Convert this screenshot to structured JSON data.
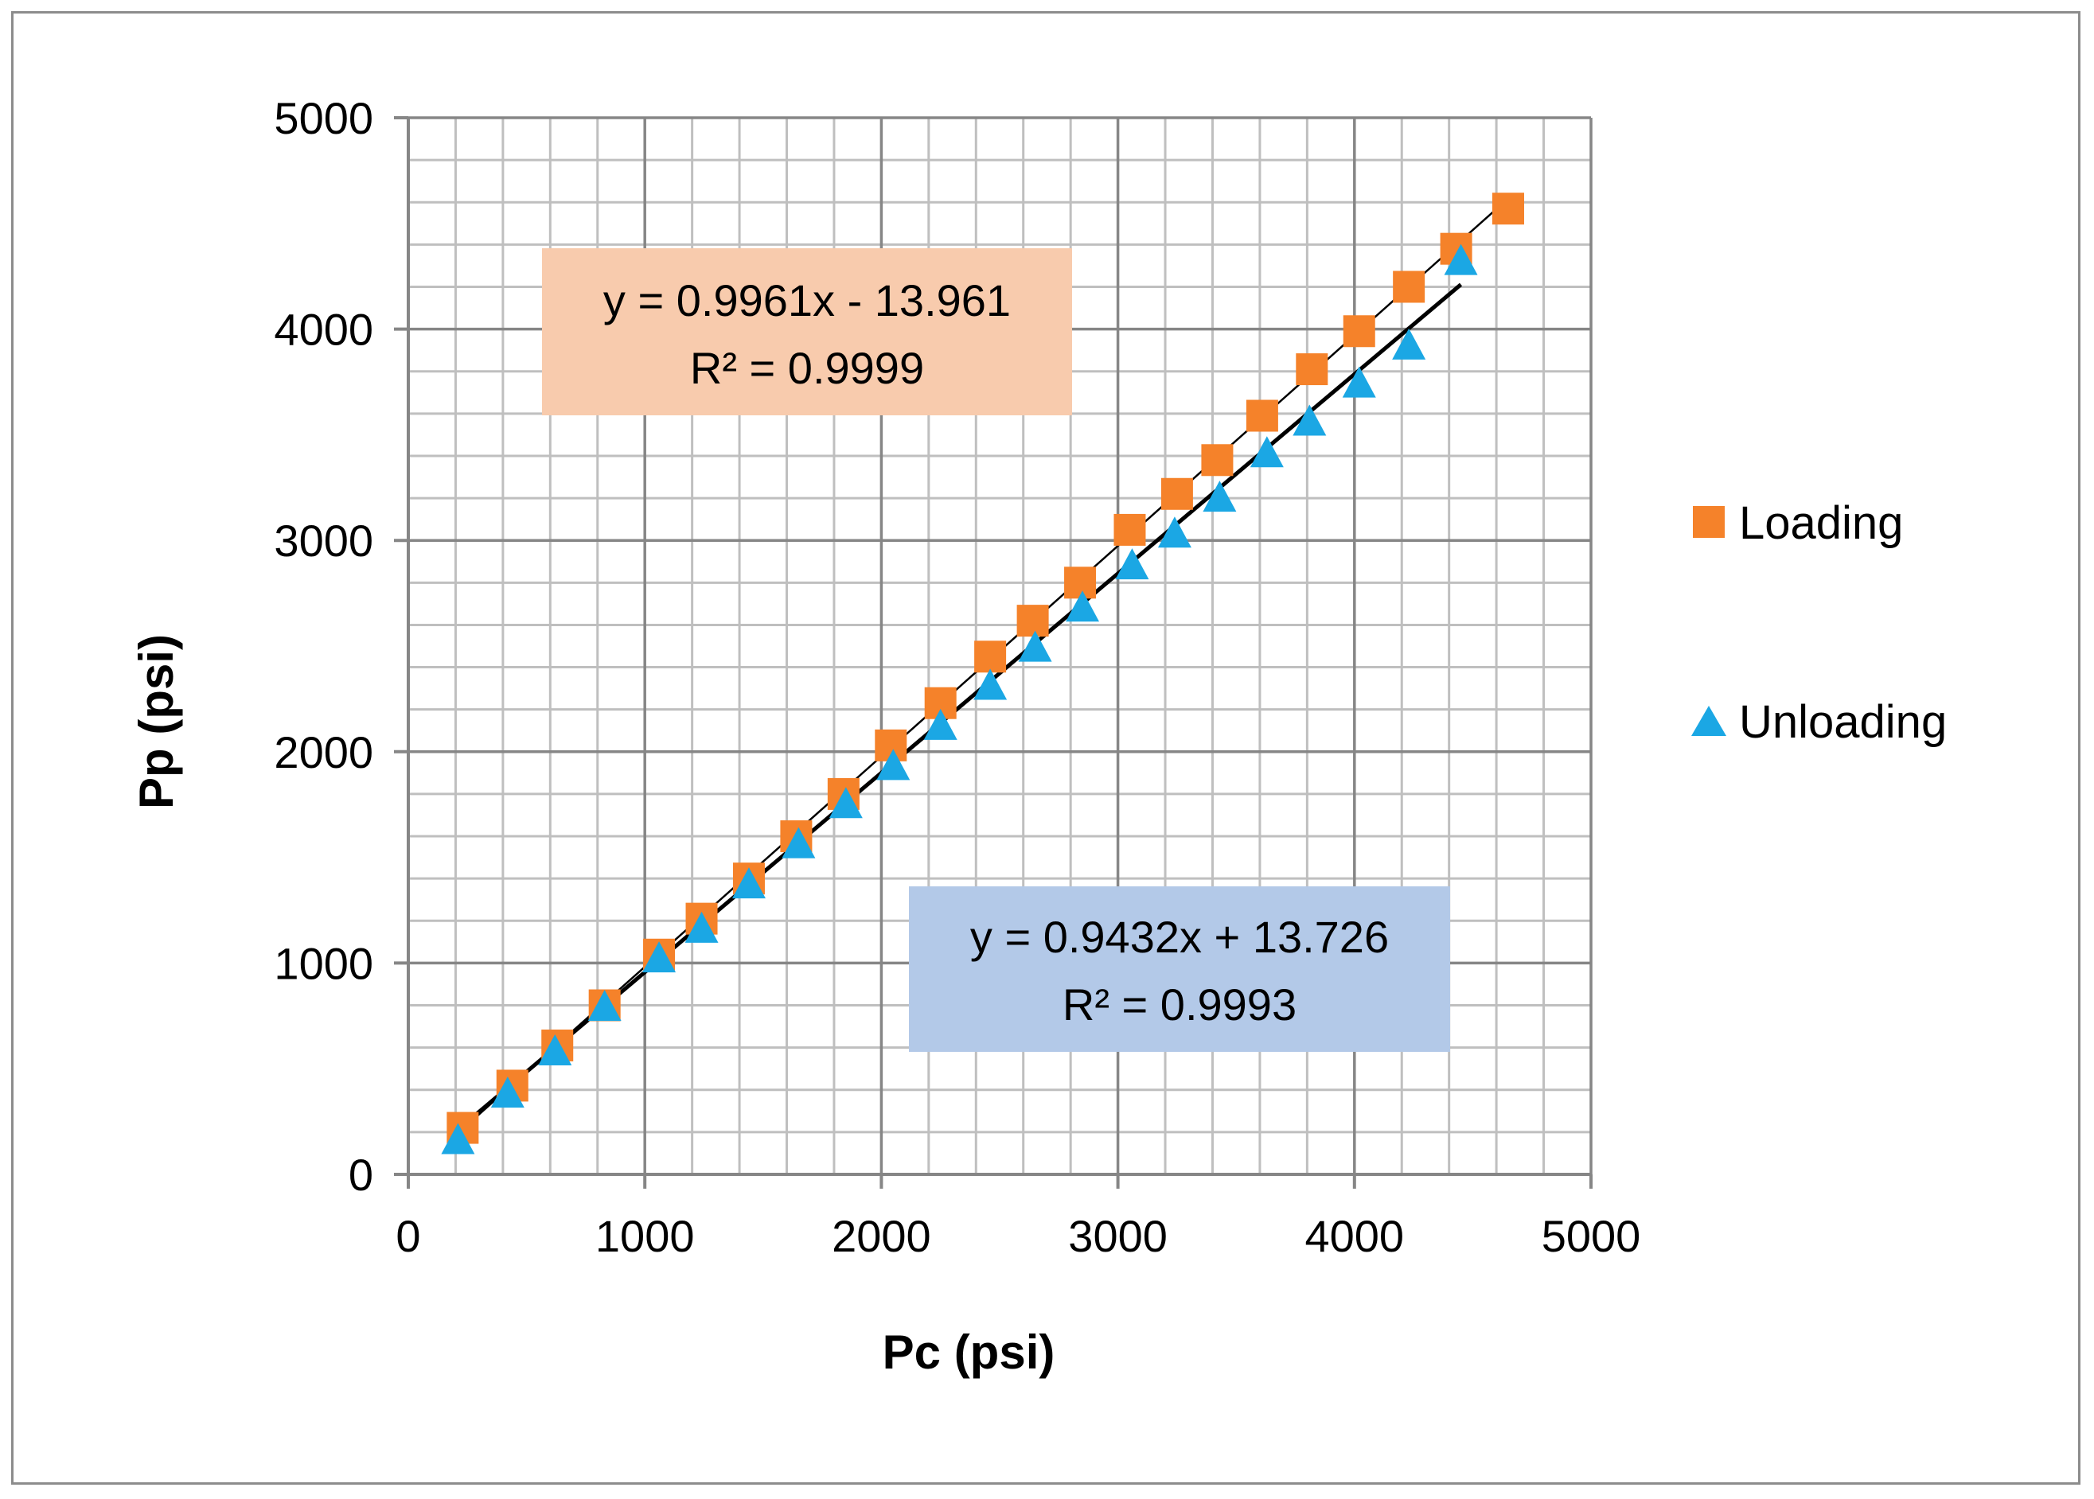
{
  "chart_data": {
    "type": "scatter",
    "title": "",
    "xlabel": "Pc (psi)",
    "ylabel": "Pp (psi)",
    "xlim": [
      0,
      5000
    ],
    "ylim": [
      0,
      5000
    ],
    "xticks": [
      0,
      1000,
      2000,
      3000,
      4000,
      5000
    ],
    "yticks": [
      0,
      1000,
      2000,
      3000,
      4000,
      5000
    ],
    "grid": true,
    "legend_position": "right",
    "series": [
      {
        "name": "Loading",
        "marker": "square",
        "color": "#F5822A",
        "x": [
          230,
          440,
          630,
          830,
          1060,
          1240,
          1440,
          1640,
          1840,
          2040,
          2250,
          2460,
          2640,
          2840,
          3050,
          3250,
          3420,
          3610,
          3820,
          4020,
          4230,
          4430,
          4650
        ],
        "y": [
          220,
          420,
          610,
          800,
          1040,
          1210,
          1400,
          1600,
          1800,
          2030,
          2230,
          2450,
          2620,
          2800,
          3050,
          3220,
          3380,
          3590,
          3810,
          3990,
          4200,
          4380,
          4570
        ],
        "trendline": {
          "slope": 0.9961,
          "intercept": -13.961,
          "x_range": [
            200,
            4650
          ],
          "color": "#000000"
        },
        "equation": "y = 0.9961x - 13.961",
        "r2": "R² = 0.9999",
        "label_bg": "#F8CBAD"
      },
      {
        "name": "Unloading",
        "marker": "triangle",
        "color": "#1BA7E4",
        "x": [
          210,
          420,
          620,
          830,
          1060,
          1240,
          1440,
          1650,
          1850,
          2050,
          2250,
          2460,
          2650,
          2850,
          3060,
          3240,
          3430,
          3630,
          3810,
          4020,
          4230,
          4450
        ],
        "y": [
          160,
          380,
          580,
          790,
          1020,
          1160,
          1370,
          1560,
          1750,
          1930,
          2120,
          2310,
          2490,
          2680,
          2880,
          3030,
          3200,
          3410,
          3560,
          3740,
          3920,
          4320
        ],
        "trendline": {
          "slope": 0.9432,
          "intercept": 13.726,
          "x_range": [
            200,
            4450
          ],
          "color": "#000000"
        },
        "equation": "y = 0.9432x + 13.726",
        "r2": "R² = 0.9993",
        "label_bg": "#B3C9E8"
      }
    ]
  }
}
